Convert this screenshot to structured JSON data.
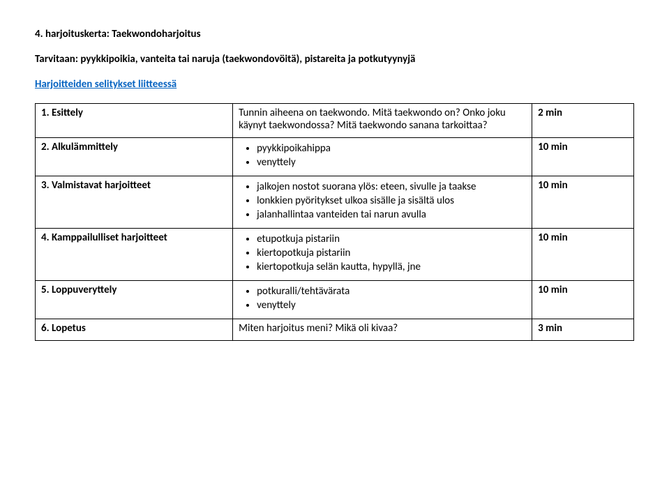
{
  "title": "4. harjoituskerta: Taekwondoharjoitus",
  "need": "Tarvitaan: pyykkipoikia, vanteita tai naruja (taekwondovöitä), pistareita ja potkutyynyjä",
  "link": "Harjoitteiden selitykset liitteessä",
  "rows": [
    {
      "num": "1.",
      "label": "Esittely",
      "desc_plain": "Tunnin aiheena on taekwondo. Mitä taekwondo on? Onko joku käynyt taekwondossa? Mitä taekwondo sanana tarkoittaa?",
      "duration": "2 min"
    },
    {
      "num": "2.",
      "label": "Alkulämmittely",
      "bullets": [
        "pyykkipoikahippa",
        "venyttely"
      ],
      "duration": "10 min"
    },
    {
      "num": "3.",
      "label": "Valmistavat harjoitteet",
      "bullets": [
        "jalkojen nostot suorana ylös: eteen, sivulle ja taakse",
        "lonkkien pyöritykset ulkoa sisälle ja sisältä ulos",
        "jalanhallintaa vanteiden tai narun avulla"
      ],
      "duration": "10 min"
    },
    {
      "num": "4.",
      "label": "Kamppailulliset harjoitteet",
      "bullets": [
        "etupotkuja pistariin",
        "kiertopotkuja pistariin",
        "kiertopotkuja selän kautta, hypyllä, jne"
      ],
      "duration": "10 min"
    },
    {
      "num": "5.",
      "label": "Loppuveryttely",
      "bullets": [
        "potkuralli/tehtävärata",
        "venyttely"
      ],
      "duration": "10 min"
    },
    {
      "num": "6.",
      "label": "Lopetus",
      "desc_plain": "Miten harjoitus meni? Mikä oli kivaa?",
      "duration": "3 min"
    }
  ]
}
